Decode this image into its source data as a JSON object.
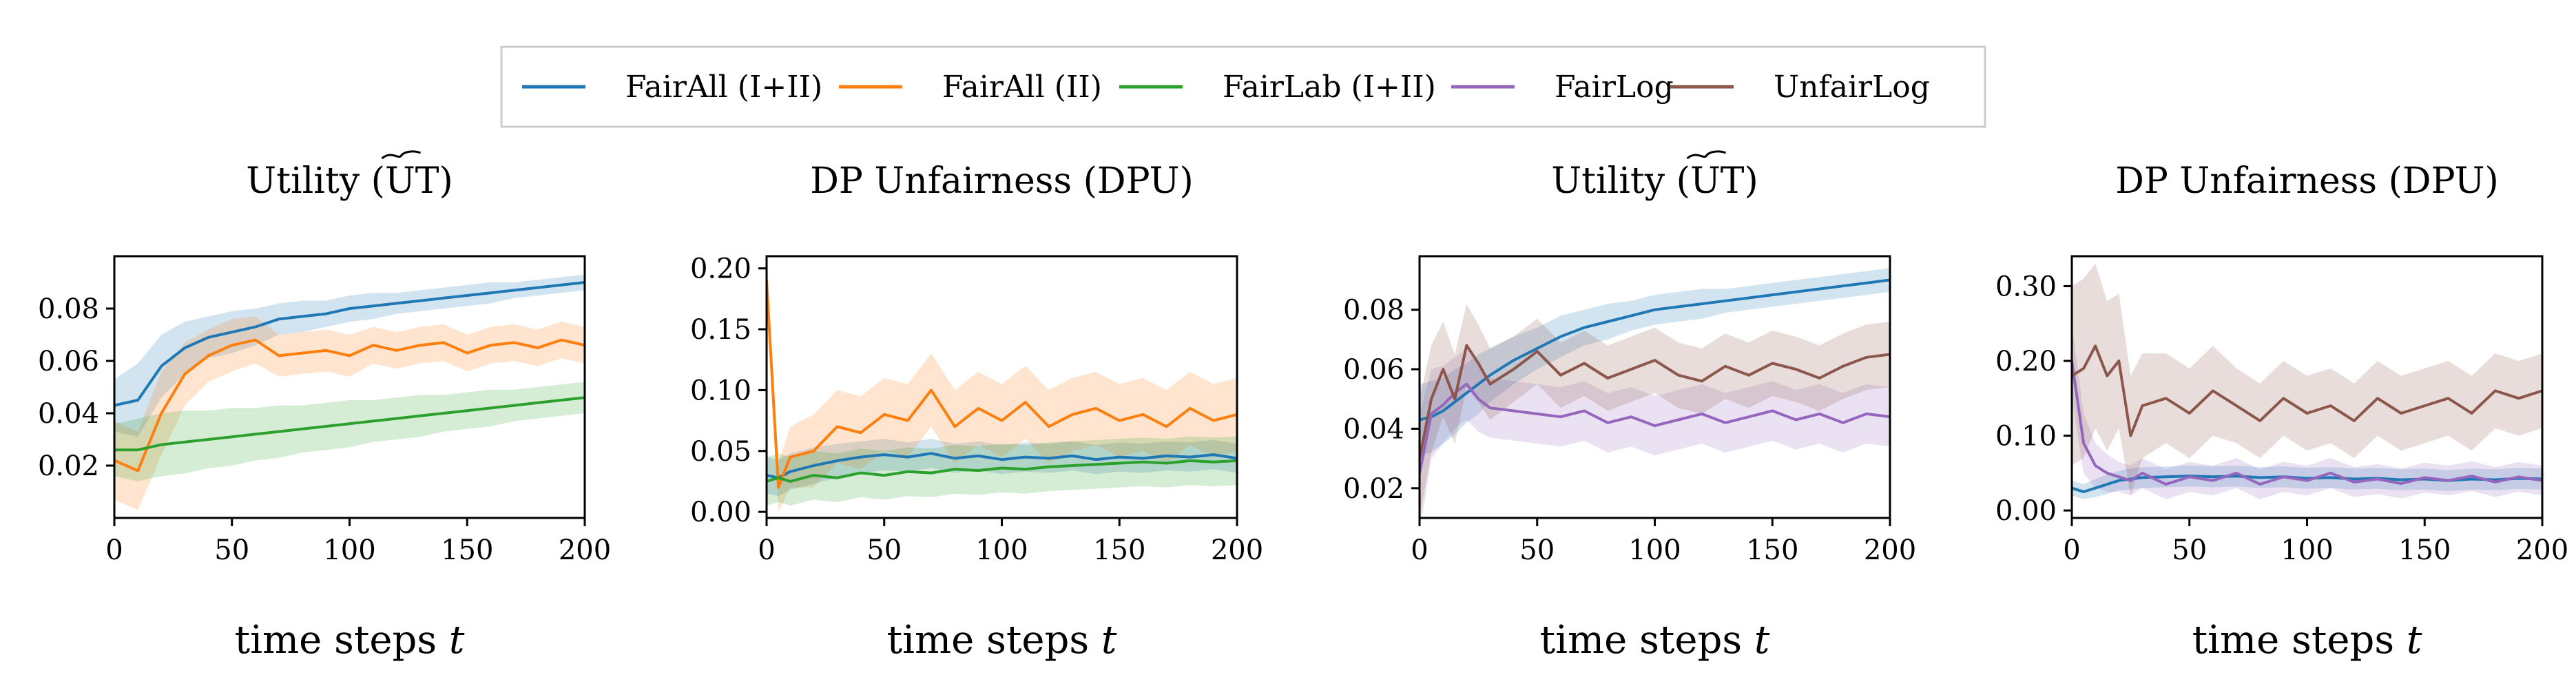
{
  "legend": {
    "entries": [
      {
        "label": "FairAll (I+II)",
        "color": "#1f77b4"
      },
      {
        "label": "FairAll (II)",
        "color": "#ff7f0e"
      },
      {
        "label": "FairLab (I+II)",
        "color": "#2ca02c"
      },
      {
        "label": "FairLog",
        "color": "#9467bd"
      },
      {
        "label": "UnfairLog",
        "color": "#8c564b"
      }
    ]
  },
  "chart_data": [
    {
      "type": "line",
      "title": "Utility (UT)",
      "title_decoration": "wide-tilde-over-UT",
      "xlabel": "time steps t",
      "ylabel": "",
      "xlim": [
        0,
        200
      ],
      "ylim": [
        0.0,
        0.1
      ],
      "xticks": [
        0,
        50,
        100,
        150,
        200
      ],
      "yticks": [
        "0.02",
        "0.04",
        "0.06",
        "0.08"
      ],
      "yticks_values": [
        0.02,
        0.04,
        0.06,
        0.08
      ],
      "grid": false,
      "x": [
        0,
        10,
        20,
        30,
        40,
        50,
        60,
        70,
        80,
        90,
        100,
        110,
        120,
        130,
        140,
        150,
        160,
        170,
        180,
        190,
        200
      ],
      "series": [
        {
          "name": "FairAll (I+II)",
          "color": "#1f77b4",
          "values": [
            0.043,
            0.045,
            0.058,
            0.065,
            0.069,
            0.071,
            0.073,
            0.076,
            0.077,
            0.078,
            0.08,
            0.081,
            0.082,
            0.083,
            0.084,
            0.085,
            0.086,
            0.087,
            0.088,
            0.089,
            0.09
          ],
          "band": [
            0.01,
            0.014,
            0.012,
            0.01,
            0.008,
            0.008,
            0.007,
            0.006,
            0.006,
            0.005,
            0.005,
            0.005,
            0.004,
            0.004,
            0.004,
            0.004,
            0.004,
            0.003,
            0.003,
            0.003,
            0.003
          ]
        },
        {
          "name": "FairAll (II)",
          "color": "#ff7f0e",
          "values": [
            0.022,
            0.018,
            0.04,
            0.055,
            0.062,
            0.066,
            0.068,
            0.062,
            0.063,
            0.064,
            0.062,
            0.066,
            0.064,
            0.066,
            0.067,
            0.063,
            0.066,
            0.067,
            0.065,
            0.068,
            0.066
          ],
          "band": [
            0.015,
            0.015,
            0.016,
            0.012,
            0.01,
            0.01,
            0.009,
            0.008,
            0.008,
            0.008,
            0.008,
            0.007,
            0.007,
            0.007,
            0.007,
            0.007,
            0.007,
            0.007,
            0.007,
            0.007,
            0.007
          ]
        },
        {
          "name": "FairLab (I+II)",
          "color": "#2ca02c",
          "values": [
            0.026,
            0.026,
            0.028,
            0.029,
            0.03,
            0.031,
            0.032,
            0.033,
            0.034,
            0.035,
            0.036,
            0.037,
            0.038,
            0.039,
            0.04,
            0.041,
            0.042,
            0.043,
            0.044,
            0.045,
            0.046
          ],
          "band": [
            0.01,
            0.012,
            0.012,
            0.012,
            0.011,
            0.011,
            0.01,
            0.01,
            0.009,
            0.009,
            0.009,
            0.008,
            0.008,
            0.008,
            0.007,
            0.007,
            0.007,
            0.006,
            0.006,
            0.006,
            0.006
          ]
        }
      ]
    },
    {
      "type": "line",
      "title": "DP Unfairness (DPU)",
      "xlabel": "time steps t",
      "ylabel": "",
      "xlim": [
        0,
        200
      ],
      "ylim": [
        -0.005,
        0.21
      ],
      "xticks": [
        0,
        50,
        100,
        150,
        200
      ],
      "yticks": [
        "0.00",
        "0.05",
        "0.10",
        "0.15",
        "0.20"
      ],
      "yticks_values": [
        0.0,
        0.05,
        0.1,
        0.15,
        0.2
      ],
      "grid": false,
      "x": [
        0,
        5,
        10,
        20,
        30,
        40,
        50,
        60,
        70,
        80,
        90,
        100,
        110,
        120,
        130,
        140,
        150,
        160,
        170,
        180,
        190,
        200
      ],
      "series": [
        {
          "name": "FairAll (I+II)",
          "color": "#1f77b4",
          "values": [
            0.03,
            0.028,
            0.033,
            0.038,
            0.042,
            0.045,
            0.047,
            0.045,
            0.048,
            0.044,
            0.046,
            0.043,
            0.045,
            0.044,
            0.046,
            0.043,
            0.045,
            0.044,
            0.046,
            0.045,
            0.047,
            0.044
          ],
          "band": [
            0.015,
            0.015,
            0.015,
            0.015,
            0.014,
            0.013,
            0.013,
            0.012,
            0.012,
            0.012,
            0.012,
            0.012,
            0.012,
            0.012,
            0.012,
            0.012,
            0.012,
            0.012,
            0.012,
            0.012,
            0.012,
            0.012
          ]
        },
        {
          "name": "FairAll (II)",
          "color": "#ff7f0e",
          "values": [
            0.19,
            0.02,
            0.045,
            0.05,
            0.07,
            0.065,
            0.08,
            0.075,
            0.1,
            0.07,
            0.085,
            0.075,
            0.09,
            0.07,
            0.08,
            0.085,
            0.075,
            0.08,
            0.07,
            0.085,
            0.075,
            0.08
          ],
          "band": [
            0.02,
            0.02,
            0.025,
            0.03,
            0.03,
            0.03,
            0.03,
            0.03,
            0.03,
            0.03,
            0.03,
            0.03,
            0.03,
            0.03,
            0.03,
            0.03,
            0.03,
            0.03,
            0.03,
            0.03,
            0.03,
            0.03
          ]
        },
        {
          "name": "FairLab (I+II)",
          "color": "#2ca02c",
          "values": [
            0.025,
            0.028,
            0.025,
            0.03,
            0.028,
            0.032,
            0.03,
            0.033,
            0.032,
            0.035,
            0.034,
            0.036,
            0.035,
            0.037,
            0.038,
            0.039,
            0.04,
            0.041,
            0.04,
            0.042,
            0.041,
            0.042
          ],
          "band": [
            0.02,
            0.02,
            0.02,
            0.02,
            0.02,
            0.02,
            0.02,
            0.02,
            0.02,
            0.02,
            0.02,
            0.02,
            0.02,
            0.02,
            0.02,
            0.02,
            0.02,
            0.02,
            0.02,
            0.02,
            0.02,
            0.02
          ]
        }
      ]
    },
    {
      "type": "line",
      "title": "Utility (UT)",
      "title_decoration": "wide-tilde-over-UT",
      "xlabel": "time steps t",
      "ylabel": "",
      "xlim": [
        0,
        200
      ],
      "ylim": [
        0.01,
        0.098
      ],
      "xticks": [
        0,
        50,
        100,
        150,
        200
      ],
      "yticks": [
        "0.02",
        "0.04",
        "0.06",
        "0.08"
      ],
      "yticks_values": [
        0.02,
        0.04,
        0.06,
        0.08
      ],
      "grid": false,
      "x": [
        0,
        5,
        10,
        15,
        20,
        25,
        30,
        40,
        50,
        60,
        70,
        80,
        90,
        100,
        110,
        120,
        130,
        140,
        150,
        160,
        170,
        180,
        190,
        200
      ],
      "series": [
        {
          "name": "FairAll (I+II)",
          "color": "#1f77b4",
          "values": [
            0.043,
            0.044,
            0.046,
            0.049,
            0.052,
            0.055,
            0.058,
            0.063,
            0.067,
            0.071,
            0.074,
            0.076,
            0.078,
            0.08,
            0.081,
            0.082,
            0.083,
            0.084,
            0.085,
            0.086,
            0.087,
            0.088,
            0.089,
            0.09
          ],
          "band": [
            0.012,
            0.012,
            0.011,
            0.011,
            0.01,
            0.01,
            0.009,
            0.008,
            0.007,
            0.007,
            0.006,
            0.006,
            0.005,
            0.005,
            0.005,
            0.005,
            0.004,
            0.004,
            0.004,
            0.004,
            0.004,
            0.004,
            0.004,
            0.004
          ]
        },
        {
          "name": "FairLog",
          "color": "#9467bd",
          "values": [
            0.025,
            0.045,
            0.048,
            0.052,
            0.055,
            0.05,
            0.047,
            0.046,
            0.045,
            0.044,
            0.046,
            0.042,
            0.044,
            0.041,
            0.043,
            0.045,
            0.042,
            0.044,
            0.046,
            0.043,
            0.045,
            0.042,
            0.045,
            0.044
          ],
          "band": [
            0.02,
            0.015,
            0.013,
            0.012,
            0.012,
            0.011,
            0.01,
            0.01,
            0.01,
            0.01,
            0.01,
            0.01,
            0.01,
            0.01,
            0.01,
            0.01,
            0.01,
            0.01,
            0.01,
            0.01,
            0.01,
            0.01,
            0.01,
            0.01
          ]
        },
        {
          "name": "UnfairLog",
          "color": "#8c564b",
          "values": [
            0.03,
            0.05,
            0.06,
            0.05,
            0.068,
            0.062,
            0.055,
            0.06,
            0.066,
            0.058,
            0.062,
            0.057,
            0.06,
            0.063,
            0.058,
            0.056,
            0.061,
            0.058,
            0.062,
            0.06,
            0.057,
            0.061,
            0.064,
            0.065
          ],
          "band": [
            0.02,
            0.018,
            0.016,
            0.015,
            0.014,
            0.013,
            0.012,
            0.011,
            0.011,
            0.011,
            0.011,
            0.011,
            0.011,
            0.011,
            0.011,
            0.011,
            0.011,
            0.011,
            0.011,
            0.011,
            0.011,
            0.011,
            0.011,
            0.011
          ]
        }
      ]
    },
    {
      "type": "line",
      "title": "DP Unfairness (DPU)",
      "xlabel": "time steps t",
      "ylabel": "",
      "xlim": [
        0,
        200
      ],
      "ylim": [
        -0.01,
        0.34
      ],
      "xticks": [
        0,
        50,
        100,
        150,
        200
      ],
      "yticks": [
        "0.00",
        "0.10",
        "0.20",
        "0.30"
      ],
      "yticks_values": [
        0.0,
        0.1,
        0.2,
        0.3
      ],
      "grid": false,
      "x": [
        0,
        5,
        10,
        15,
        20,
        25,
        30,
        40,
        50,
        60,
        70,
        80,
        90,
        100,
        110,
        120,
        130,
        140,
        150,
        160,
        170,
        180,
        190,
        200
      ],
      "series": [
        {
          "name": "FairAll (I+II)",
          "color": "#1f77b4",
          "values": [
            0.03,
            0.025,
            0.03,
            0.035,
            0.04,
            0.042,
            0.044,
            0.045,
            0.046,
            0.045,
            0.046,
            0.044,
            0.045,
            0.043,
            0.044,
            0.042,
            0.043,
            0.041,
            0.042,
            0.04,
            0.042,
            0.041,
            0.043,
            0.042
          ],
          "band": [
            0.01,
            0.01,
            0.012,
            0.013,
            0.013,
            0.014,
            0.014,
            0.014,
            0.014,
            0.014,
            0.014,
            0.014,
            0.014,
            0.014,
            0.014,
            0.014,
            0.014,
            0.014,
            0.014,
            0.014,
            0.014,
            0.014,
            0.014,
            0.014
          ]
        },
        {
          "name": "FairLog",
          "color": "#9467bd",
          "values": [
            0.2,
            0.09,
            0.06,
            0.05,
            0.045,
            0.04,
            0.05,
            0.035,
            0.045,
            0.04,
            0.05,
            0.035,
            0.045,
            0.04,
            0.05,
            0.038,
            0.042,
            0.036,
            0.044,
            0.04,
            0.046,
            0.038,
            0.045,
            0.04
          ],
          "band": [
            0.05,
            0.04,
            0.03,
            0.025,
            0.02,
            0.02,
            0.02,
            0.02,
            0.02,
            0.02,
            0.02,
            0.02,
            0.02,
            0.02,
            0.02,
            0.02,
            0.02,
            0.02,
            0.02,
            0.02,
            0.02,
            0.02,
            0.02,
            0.02
          ]
        },
        {
          "name": "UnfairLog",
          "color": "#8c564b",
          "values": [
            0.18,
            0.19,
            0.22,
            0.18,
            0.2,
            0.1,
            0.14,
            0.15,
            0.13,
            0.16,
            0.14,
            0.12,
            0.15,
            0.13,
            0.14,
            0.12,
            0.15,
            0.13,
            0.14,
            0.15,
            0.13,
            0.16,
            0.15,
            0.16
          ],
          "band": [
            0.12,
            0.12,
            0.11,
            0.1,
            0.09,
            0.08,
            0.07,
            0.06,
            0.06,
            0.06,
            0.05,
            0.05,
            0.05,
            0.05,
            0.05,
            0.05,
            0.05,
            0.05,
            0.05,
            0.05,
            0.05,
            0.05,
            0.05,
            0.05
          ]
        }
      ]
    }
  ]
}
